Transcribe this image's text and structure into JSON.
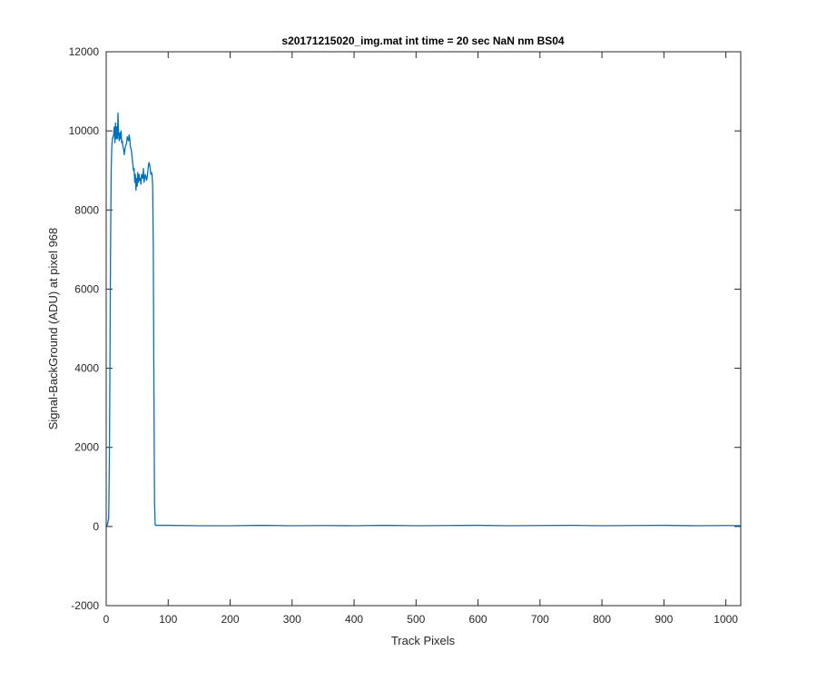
{
  "chart_data": {
    "type": "line",
    "title": "s20171215020_img.mat int time = 20 sec  NaN nm BS04",
    "xlabel": "Track Pixels",
    "ylabel": "Signal-BackGround (ADU) at pixel 968",
    "xlim": [
      0,
      1024
    ],
    "ylim": [
      -2000,
      12000
    ],
    "x_ticks": [
      0,
      100,
      200,
      300,
      400,
      500,
      600,
      700,
      800,
      900,
      1000
    ],
    "y_ticks": [
      -2000,
      0,
      2000,
      4000,
      6000,
      8000,
      10000,
      12000
    ],
    "x_tick_labels": [
      "0",
      "100",
      "200",
      "300",
      "400",
      "500",
      "600",
      "700",
      "800",
      "900",
      "1000"
    ],
    "y_tick_labels": [
      "-2000",
      "0",
      "2000",
      "4000",
      "6000",
      "8000",
      "10000",
      "12000"
    ],
    "grid": false,
    "line_color": "#0072bd",
    "series": [
      {
        "x": [
          0,
          2,
          4,
          5,
          6,
          7,
          8,
          9,
          10,
          11,
          12,
          13,
          14,
          15,
          16,
          17,
          18,
          19,
          20,
          21,
          22,
          23,
          24,
          25,
          26,
          27,
          28,
          29,
          30,
          31,
          32,
          33,
          34,
          35,
          36,
          37,
          38,
          39,
          40,
          41,
          42,
          43,
          44,
          45,
          46,
          47,
          48,
          49,
          50,
          51,
          52,
          53,
          54,
          55,
          56,
          57,
          58,
          59,
          60,
          61,
          62,
          63,
          64,
          65,
          66,
          67,
          68,
          69,
          70,
          71,
          72,
          73,
          74,
          75,
          76,
          77,
          78,
          79,
          80,
          100,
          150,
          200,
          250,
          300,
          350,
          400,
          450,
          500,
          550,
          600,
          650,
          700,
          750,
          800,
          850,
          900,
          950,
          1000,
          1024
        ],
        "y": [
          0,
          50,
          200,
          1500,
          4000,
          7000,
          9000,
          9600,
          9800,
          9850,
          9900,
          10100,
          9700,
          10200,
          9800,
          10100,
          9800,
          10450,
          9900,
          9750,
          9950,
          9800,
          10000,
          9700,
          9750,
          9600,
          9550,
          9400,
          9500,
          9600,
          9650,
          9700,
          9850,
          9800,
          9750,
          9900,
          9800,
          9600,
          9550,
          9450,
          9300,
          9150,
          9000,
          9050,
          8700,
          8900,
          8500,
          8800,
          8600,
          8950,
          8700,
          8900,
          8750,
          8800,
          8650,
          8900,
          8850,
          8800,
          9050,
          8700,
          8800,
          8900,
          8850,
          8750,
          8800,
          8950,
          9100,
          9200,
          9150,
          9050,
          8900,
          8950,
          8900,
          8600,
          7000,
          3500,
          600,
          50,
          30,
          30,
          20,
          20,
          30,
          20,
          25,
          20,
          30,
          20,
          25,
          30,
          20,
          25,
          30,
          20,
          25,
          30,
          20,
          25,
          20
        ]
      }
    ]
  }
}
